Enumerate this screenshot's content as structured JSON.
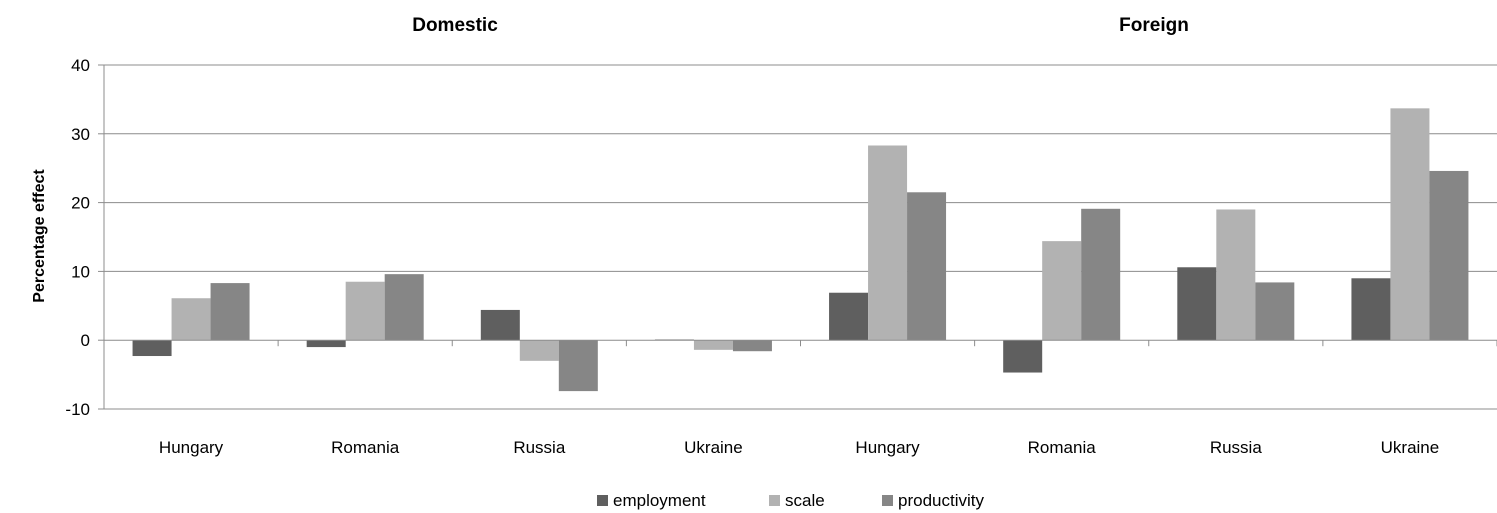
{
  "chart_data": {
    "type": "bar",
    "group_titles": [
      "Domestic",
      "Foreign"
    ],
    "categories": [
      "Hungary",
      "Romania",
      "Russia",
      "Ukraine",
      "Hungary",
      "Romania",
      "Russia",
      "Ukraine"
    ],
    "series": [
      {
        "name": "employment",
        "color": "#5f5f5f",
        "values": [
          -2.3,
          -1.0,
          4.4,
          0.1,
          6.9,
          -4.7,
          10.6,
          9.0
        ]
      },
      {
        "name": "scale",
        "color": "#b2b2b2",
        "values": [
          6.1,
          8.5,
          -3.0,
          -1.4,
          28.3,
          14.4,
          19.0,
          33.7
        ]
      },
      {
        "name": "productivity",
        "color": "#868686",
        "values": [
          8.3,
          9.6,
          -7.4,
          -1.6,
          21.5,
          19.1,
          8.4,
          24.6
        ]
      }
    ],
    "ylabel": "Percentage effect",
    "xlabel": "",
    "ylim": [
      -10,
      40
    ],
    "yticks": [
      -10,
      0,
      10,
      20,
      30,
      40
    ],
    "grid": true,
    "legend_position": "bottom"
  }
}
